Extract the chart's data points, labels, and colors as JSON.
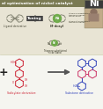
{
  "title": "al optimisation of nickel catalyst",
  "title_bg": "#7a7a52",
  "ni_badge_bg": "#3a3a3a",
  "ni_badge_text": "Ni",
  "top_bg": "#e8e4d4",
  "bottom_bg": "#f5f5f0",
  "white_panel_bg": "#ffffff",
  "tuning_arrow_color": "#2a2a2a",
  "tuning_box_color": "#444444",
  "tuning_text": "Tuning",
  "green_ni_color": "#6aaa44",
  "red_mol_color": "#cc2233",
  "blue_mol_color": "#3344bb",
  "pink_mol_color": "#cc3366",
  "bottom_arrow_color": "#555555",
  "wing_color": "#888877",
  "photo_bg": "#c0aa88",
  "divider_color": "#ccccaa",
  "label_color_dark": "#444433",
  "ni_dcayl_label": "Ni-dcayl",
  "salicylate_text": "Salicylate derivative",
  "substone_text": "Substone derivative",
  "ligand_text": "Ligand derivative",
  "ni_cat_text": "Ni catalyst",
  "ni_cat_sub1": "Thiopene substituted",
  "ni_cat_sub2": "nickel band"
}
